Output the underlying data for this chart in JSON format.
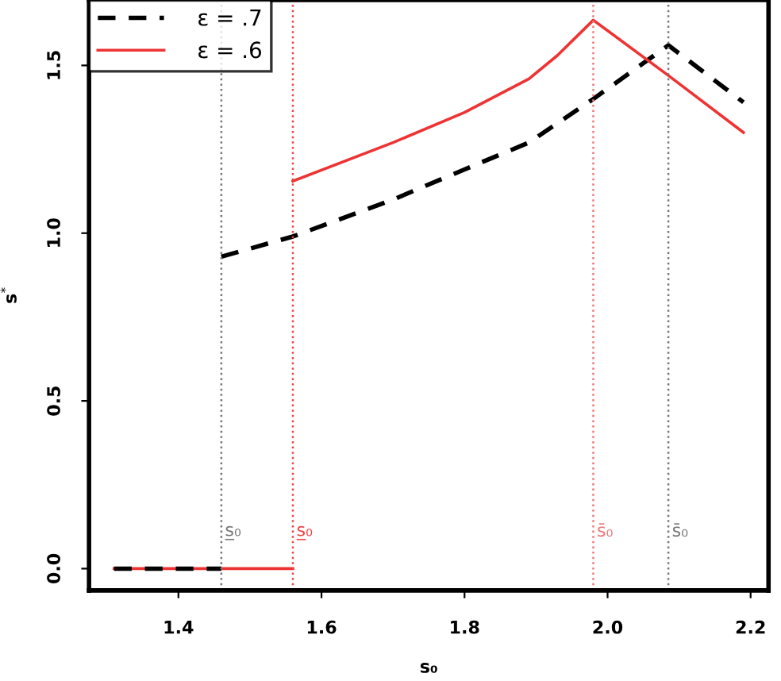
{
  "chart_data": {
    "type": "line",
    "xlabel": "s₀",
    "ylabel": "s$^{*}$",
    "series": [
      {
        "name": "ε = .7",
        "color": "#000000",
        "line_style": "dashed",
        "x": [
          1.46,
          1.56,
          1.7,
          1.8,
          1.89,
          1.98,
          2.085,
          2.19
        ],
        "values": [
          0.93,
          0.99,
          1.1,
          1.19,
          1.27,
          1.4,
          1.56,
          1.39
        ]
      },
      {
        "name": "ε = .6",
        "color": "#ee3333",
        "line_style": "solid",
        "x": [
          1.56,
          1.7,
          1.8,
          1.89,
          1.93,
          1.98,
          2.085,
          2.19
        ],
        "values": [
          1.155,
          1.27,
          1.36,
          1.46,
          1.53,
          1.635,
          1.47,
          1.3
        ]
      },
      {
        "color": "#ee3333",
        "line_style": "solid",
        "x": [
          1.31,
          1.56
        ],
        "values": [
          0,
          0
        ]
      },
      {
        "color": "#000000",
        "line_style": "dashed",
        "x": [
          1.31,
          1.46
        ],
        "values": [
          0,
          0
        ]
      }
    ],
    "ref_lines": [
      {
        "axis": "x",
        "value": 1.46,
        "label": "s̲₀",
        "color": "#777777",
        "line_style": "dotted"
      },
      {
        "axis": "x",
        "value": 1.56,
        "label": "s̲₀",
        "color": "#ee4444",
        "line_style": "dotted"
      },
      {
        "axis": "x",
        "value": 1.98,
        "label": "s̄₀",
        "color": "#ee7777",
        "line_style": "dotted"
      },
      {
        "axis": "x",
        "value": 2.085,
        "label": "s̄₀",
        "color": "#777777",
        "line_style": "dotted"
      }
    ],
    "xlim": [
      1.275,
      2.225
    ],
    "xticks": [
      1.4,
      1.6,
      1.8,
      {
        "value": 2,
        "label": "2.0"
      },
      2.2
    ],
    "ylim": [
      -0.065,
      1.695
    ],
    "yticks": [
      {
        "value": 0,
        "label": "0.0"
      },
      0.5,
      {
        "value": 1,
        "label": "1.0"
      },
      1.5
    ],
    "grid": false,
    "legend": "top left",
    "marker": "none"
  }
}
